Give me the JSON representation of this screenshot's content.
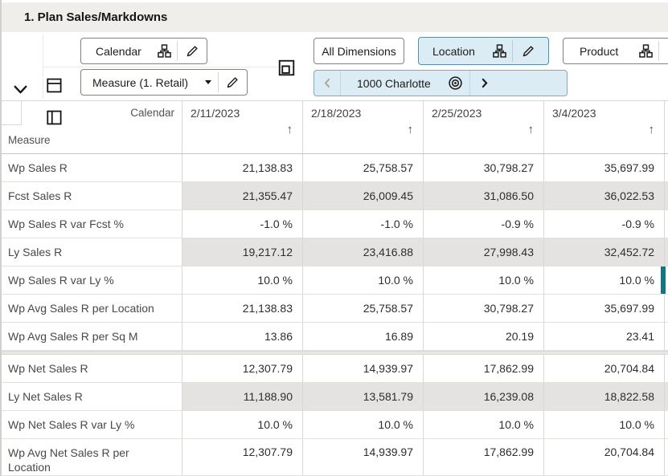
{
  "title": "1. Plan Sales/Markdowns",
  "toolbar": {
    "calendar_button": {
      "label": "Calendar"
    },
    "measure_button": {
      "label": "Measure (1. Retail)"
    },
    "all_dimensions_button": {
      "label": "All Dimensions"
    },
    "location_button": {
      "label": "Location"
    },
    "product_button": {
      "label": "Product"
    },
    "location_chip": {
      "label": "1000 Charlotte"
    }
  },
  "grid": {
    "corner": {
      "column_dimension": "Calendar",
      "row_dimension": "Measure"
    },
    "columns": [
      {
        "label": "2/11/2023",
        "sort": "asc",
        "sort_glyph": "↑"
      },
      {
        "label": "2/18/2023",
        "sort": "asc",
        "sort_glyph": "↑"
      },
      {
        "label": "2/25/2023",
        "sort": "asc",
        "sort_glyph": "↑"
      },
      {
        "label": "3/4/2023",
        "sort": "asc",
        "sort_glyph": "↑"
      }
    ],
    "sections": [
      {
        "rows": [
          {
            "label": "Wp Sales R",
            "values": [
              "21,138.83",
              "25,758.57",
              "30,798.27",
              "35,697.99"
            ],
            "shaded": false
          },
          {
            "label": "Fcst Sales R",
            "values": [
              "21,355.47",
              "26,009.45",
              "31,086.50",
              "36,022.53"
            ],
            "shaded": true
          },
          {
            "label": "Wp Sales R var Fcst %",
            "values": [
              "-1.0 %",
              "-1.0 %",
              "-0.9 %",
              "-0.9 %"
            ],
            "shaded": false
          },
          {
            "label": "Ly Sales R",
            "values": [
              "19,217.12",
              "23,416.88",
              "27,998.43",
              "32,452.72"
            ],
            "shaded": true
          },
          {
            "label": "Wp Sales R var Ly %",
            "values": [
              "10.0 %",
              "10.0 %",
              "10.0 %",
              "10.0 %"
            ],
            "shaded": false,
            "selected_edge": true
          },
          {
            "label": "Wp Avg Sales R per Location",
            "values": [
              "21,138.83",
              "25,758.57",
              "30,798.27",
              "35,697.99"
            ],
            "shaded": false
          },
          {
            "label": "Wp Avg Sales R per Sq M",
            "values": [
              "13.86",
              "16.89",
              "20.19",
              "23.41"
            ],
            "shaded": false
          }
        ]
      },
      {
        "rows": [
          {
            "label": "Wp Net Sales R",
            "values": [
              "12,307.79",
              "14,939.97",
              "17,862.99",
              "20,704.84"
            ],
            "shaded": false
          },
          {
            "label": "Ly Net Sales R",
            "values": [
              "11,188.90",
              "13,581.79",
              "16,239.08",
              "18,822.58"
            ],
            "shaded": true
          },
          {
            "label": "Wp Net Sales R var Ly %",
            "values": [
              "10.0 %",
              "10.0 %",
              "10.0 %",
              "10.0 %"
            ],
            "shaded": false
          },
          {
            "label": "Wp Avg Net Sales R per Location",
            "values": [
              "12,307.79",
              "14,939.97",
              "17,862.99",
              "20,704.84"
            ],
            "shaded": false,
            "tall": true
          }
        ]
      }
    ]
  },
  "colors": {
    "accent_teal": "#127685",
    "shaded_cell": "#e4e3e1",
    "chip_blue": "#dcecf4",
    "titlebar_bg": "#f0eeeb"
  }
}
